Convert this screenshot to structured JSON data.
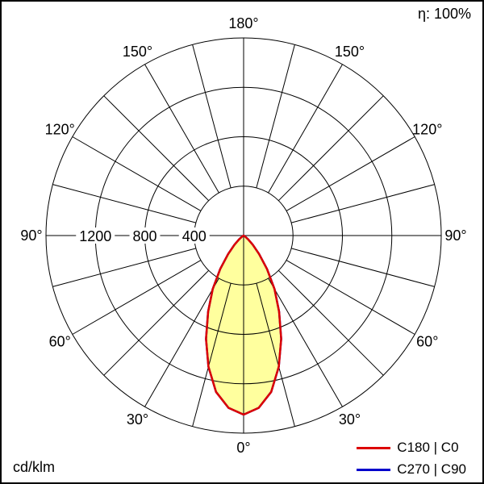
{
  "header": {
    "efficiency_label": "η: 100%"
  },
  "footer": {
    "unit_label": "cd/klm"
  },
  "legend": [
    {
      "label": "C180 | C0",
      "color": "#dd0000"
    },
    {
      "label": "C270 | C90",
      "color": "#0000cc"
    }
  ],
  "chart_data": {
    "type": "polar-intensity",
    "unit": "cd/klm",
    "efficiency_percent": 100,
    "radial_ticks": [
      400,
      800,
      1200
    ],
    "radial_tick_labels": [
      "400",
      "800",
      "1200"
    ],
    "radial_max": 1600,
    "angle_step_deg": 15,
    "angle_tick_labels": [
      "0°",
      "30°",
      "60°",
      "90°",
      "120°",
      "150°",
      "180°"
    ],
    "grid": true,
    "legend_position": "bottom-right",
    "series": [
      {
        "name": "C180 | C0",
        "color": "#dd0000",
        "fill": "#ffff9e",
        "gamma_deg": [
          0,
          5,
          10,
          15,
          20,
          25,
          30,
          35,
          40,
          45,
          50,
          55,
          60,
          65,
          70,
          75,
          80,
          85,
          90
        ],
        "intensity_cd_klm": [
          1450,
          1400,
          1285,
          1100,
          890,
          680,
          500,
          330,
          195,
          105,
          48,
          18,
          6,
          2,
          0,
          0,
          0,
          0,
          0
        ]
      },
      {
        "name": "C270 | C90",
        "color": "#0000cc",
        "fill": null,
        "gamma_deg": [
          0,
          5,
          10,
          15,
          20,
          25,
          30,
          35,
          40,
          45,
          50,
          55,
          60,
          65,
          70,
          75,
          80,
          85,
          90
        ],
        "intensity_cd_klm": [
          1450,
          1400,
          1285,
          1100,
          890,
          680,
          500,
          330,
          195,
          105,
          48,
          18,
          6,
          2,
          0,
          0,
          0,
          0,
          0
        ]
      }
    ]
  }
}
